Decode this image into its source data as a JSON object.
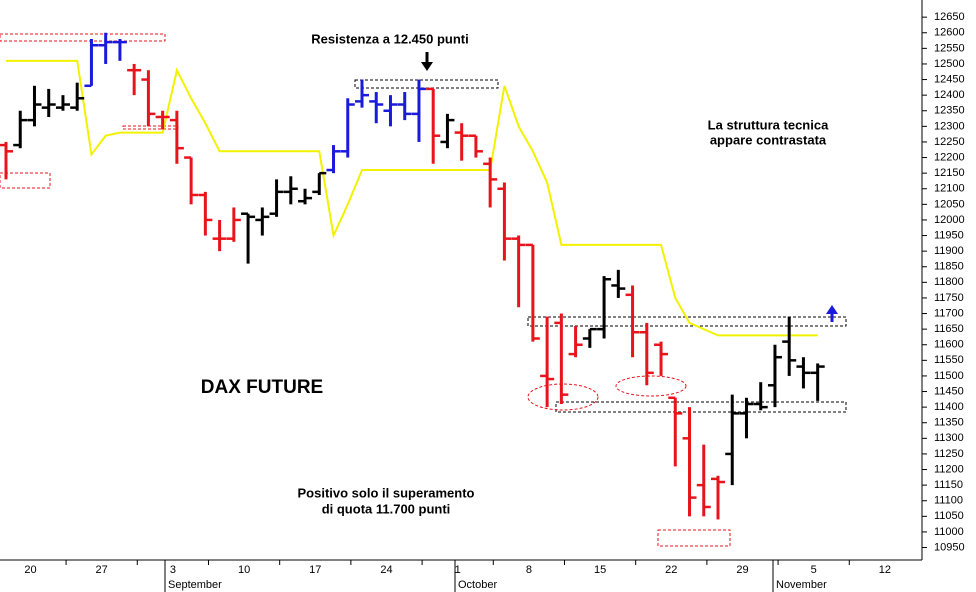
{
  "chart_data": {
    "type": "ohlc",
    "title": "DAX FUTURE",
    "annotations": [
      "Resistenza a 12.450 punti",
      [
        "La struttura tecnica",
        "appare contrastata"
      ],
      [
        "Positivo solo il superamento",
        "di quota 11.700 punti"
      ]
    ],
    "categories": [
      null,
      null,
      "20",
      null,
      null,
      null,
      null,
      "27",
      null,
      null,
      null,
      null,
      "3",
      null,
      null,
      null,
      null,
      "10",
      null,
      null,
      null,
      null,
      "17",
      null,
      null,
      null,
      null,
      "24",
      null,
      null,
      null,
      null,
      "1",
      null,
      null,
      null,
      null,
      "8",
      null,
      null,
      null,
      null,
      "15",
      null,
      null,
      null,
      null,
      "22",
      null,
      null,
      null,
      null,
      "29",
      null,
      null,
      null,
      null,
      "5",
      null,
      null,
      null,
      null,
      "12"
    ],
    "months": [
      "September",
      "October",
      "November"
    ],
    "open": [
      12240,
      12240,
      12320,
      12360,
      12360,
      12360,
      12430,
      12560,
      12570,
      12480,
      12450,
      12330,
      12320,
      12200,
      12080,
      11940,
      11940,
      12020,
      12000,
      12020,
      12090,
      12060,
      12090,
      12160,
      12220,
      12380,
      12380,
      12350,
      12370,
      12340,
      12420,
      12250,
      12280,
      12270,
      12180,
      12100,
      11940,
      11920,
      11500,
      11670,
      11570,
      11620,
      11650,
      11790,
      11760,
      11640,
      11600,
      11430,
      11300,
      11150,
      11170,
      11250,
      11380,
      11410,
      11470,
      11610,
      11530,
      11510,
      null,
      null,
      null,
      null,
      null
    ],
    "high": [
      12250,
      12350,
      12430,
      12420,
      12400,
      12440,
      12580,
      12600,
      12580,
      12500,
      12480,
      12350,
      12350,
      12200,
      12090,
      12000,
      12040,
      12020,
      12040,
      12130,
      12140,
      12100,
      12150,
      12240,
      12390,
      12450,
      12410,
      12400,
      12410,
      12450,
      12420,
      12340,
      12310,
      12270,
      12200,
      12120,
      11950,
      11920,
      11690,
      11700,
      11660,
      11650,
      11820,
      11840,
      11790,
      11670,
      11610,
      11430,
      11400,
      11280,
      11180,
      11440,
      11430,
      11480,
      11600,
      11690,
      11560,
      11540,
      null,
      null,
      null,
      null,
      null
    ],
    "low": [
      12130,
      12230,
      12300,
      12330,
      12350,
      12350,
      12430,
      12500,
      12510,
      12400,
      12300,
      12290,
      12180,
      12050,
      11950,
      11900,
      11930,
      11860,
      11950,
      12010,
      12050,
      12050,
      12080,
      12150,
      12200,
      12360,
      12310,
      12300,
      12320,
      12250,
      12180,
      12230,
      12190,
      12200,
      12040,
      11870,
      11720,
      11610,
      11400,
      11410,
      11560,
      11590,
      11620,
      11750,
      11560,
      11470,
      11500,
      11210,
      11050,
      11050,
      11040,
      11150,
      11300,
      11390,
      11400,
      11500,
      11460,
      11420,
      null,
      null,
      null,
      null,
      null
    ],
    "close": [
      12220,
      12320,
      12370,
      12370,
      12370,
      12390,
      12560,
      12570,
      12570,
      12480,
      12340,
      12330,
      12230,
      12080,
      12000,
      11940,
      12000,
      12010,
      12010,
      12090,
      12100,
      12070,
      12150,
      12220,
      12370,
      12400,
      12370,
      12370,
      12340,
      12420,
      12270,
      12320,
      12270,
      12220,
      12130,
      11940,
      11920,
      11620,
      11490,
      11440,
      11600,
      11650,
      11810,
      11780,
      11640,
      11510,
      11570,
      11380,
      11110,
      11080,
      11160,
      11380,
      11410,
      11400,
      11560,
      11550,
      11510,
      11530,
      null,
      null,
      null,
      null,
      null
    ],
    "colors": [
      "#e8141c",
      "#000000",
      "#000000",
      "#000000",
      "#000000",
      "#000000",
      "#1a1adc",
      "#1a1adc",
      "#1a1adc",
      "#e8141c",
      "#e8141c",
      "#e8141c",
      "#e8141c",
      "#e8141c",
      "#e8141c",
      "#e8141c",
      "#e8141c",
      "#000000",
      "#000000",
      "#000000",
      "#000000",
      "#000000",
      "#000000",
      "#1a1adc",
      "#1a1adc",
      "#1a1adc",
      "#1a1adc",
      "#1a1adc",
      "#1a1adc",
      "#1a1adc",
      "#e8141c",
      "#000000",
      "#e8141c",
      "#e8141c",
      "#e8141c",
      "#e8141c",
      "#e8141c",
      "#e8141c",
      "#e8141c",
      "#e8141c",
      "#e8141c",
      "#000000",
      "#000000",
      "#000000",
      "#e8141c",
      "#e8141c",
      "#e8141c",
      "#e8141c",
      "#e8141c",
      "#e8141c",
      "#e8141c",
      "#000000",
      "#000000",
      "#000000",
      "#000000",
      "#000000",
      "#000000",
      "#000000",
      null,
      null,
      null,
      null,
      null
    ],
    "line": {
      "color": "#f2f200",
      "values": [
        12510,
        12510,
        12510,
        12510,
        12510,
        12510,
        12210,
        12270,
        12280,
        12280,
        12280,
        12280,
        12480,
        12390,
        12310,
        12220,
        12220,
        12220,
        12220,
        12220,
        12220,
        12220,
        12220,
        11950,
        12050,
        12160,
        12160,
        12160,
        12160,
        12160,
        12160,
        12160,
        12160,
        12160,
        12160,
        12430,
        12300,
        12220,
        12120,
        11920,
        11920,
        11920,
        11920,
        11920,
        11920,
        11920,
        11920,
        11750,
        11670,
        11650,
        11630,
        11630,
        11630,
        11630,
        11630,
        11630,
        11630,
        11630,
        null,
        null,
        null,
        null,
        null
      ]
    },
    "ylim": [
      10910,
      12705
    ],
    "yticks": [
      10950,
      11000,
      11050,
      11100,
      11150,
      11200,
      11250,
      11300,
      11350,
      11400,
      11450,
      11500,
      11550,
      11600,
      11650,
      11700,
      11750,
      11800,
      11850,
      11900,
      11950,
      12000,
      12050,
      12100,
      12150,
      12200,
      12250,
      12300,
      12350,
      12400,
      12450,
      12500,
      12550,
      12600,
      12650
    ],
    "grid": false
  }
}
